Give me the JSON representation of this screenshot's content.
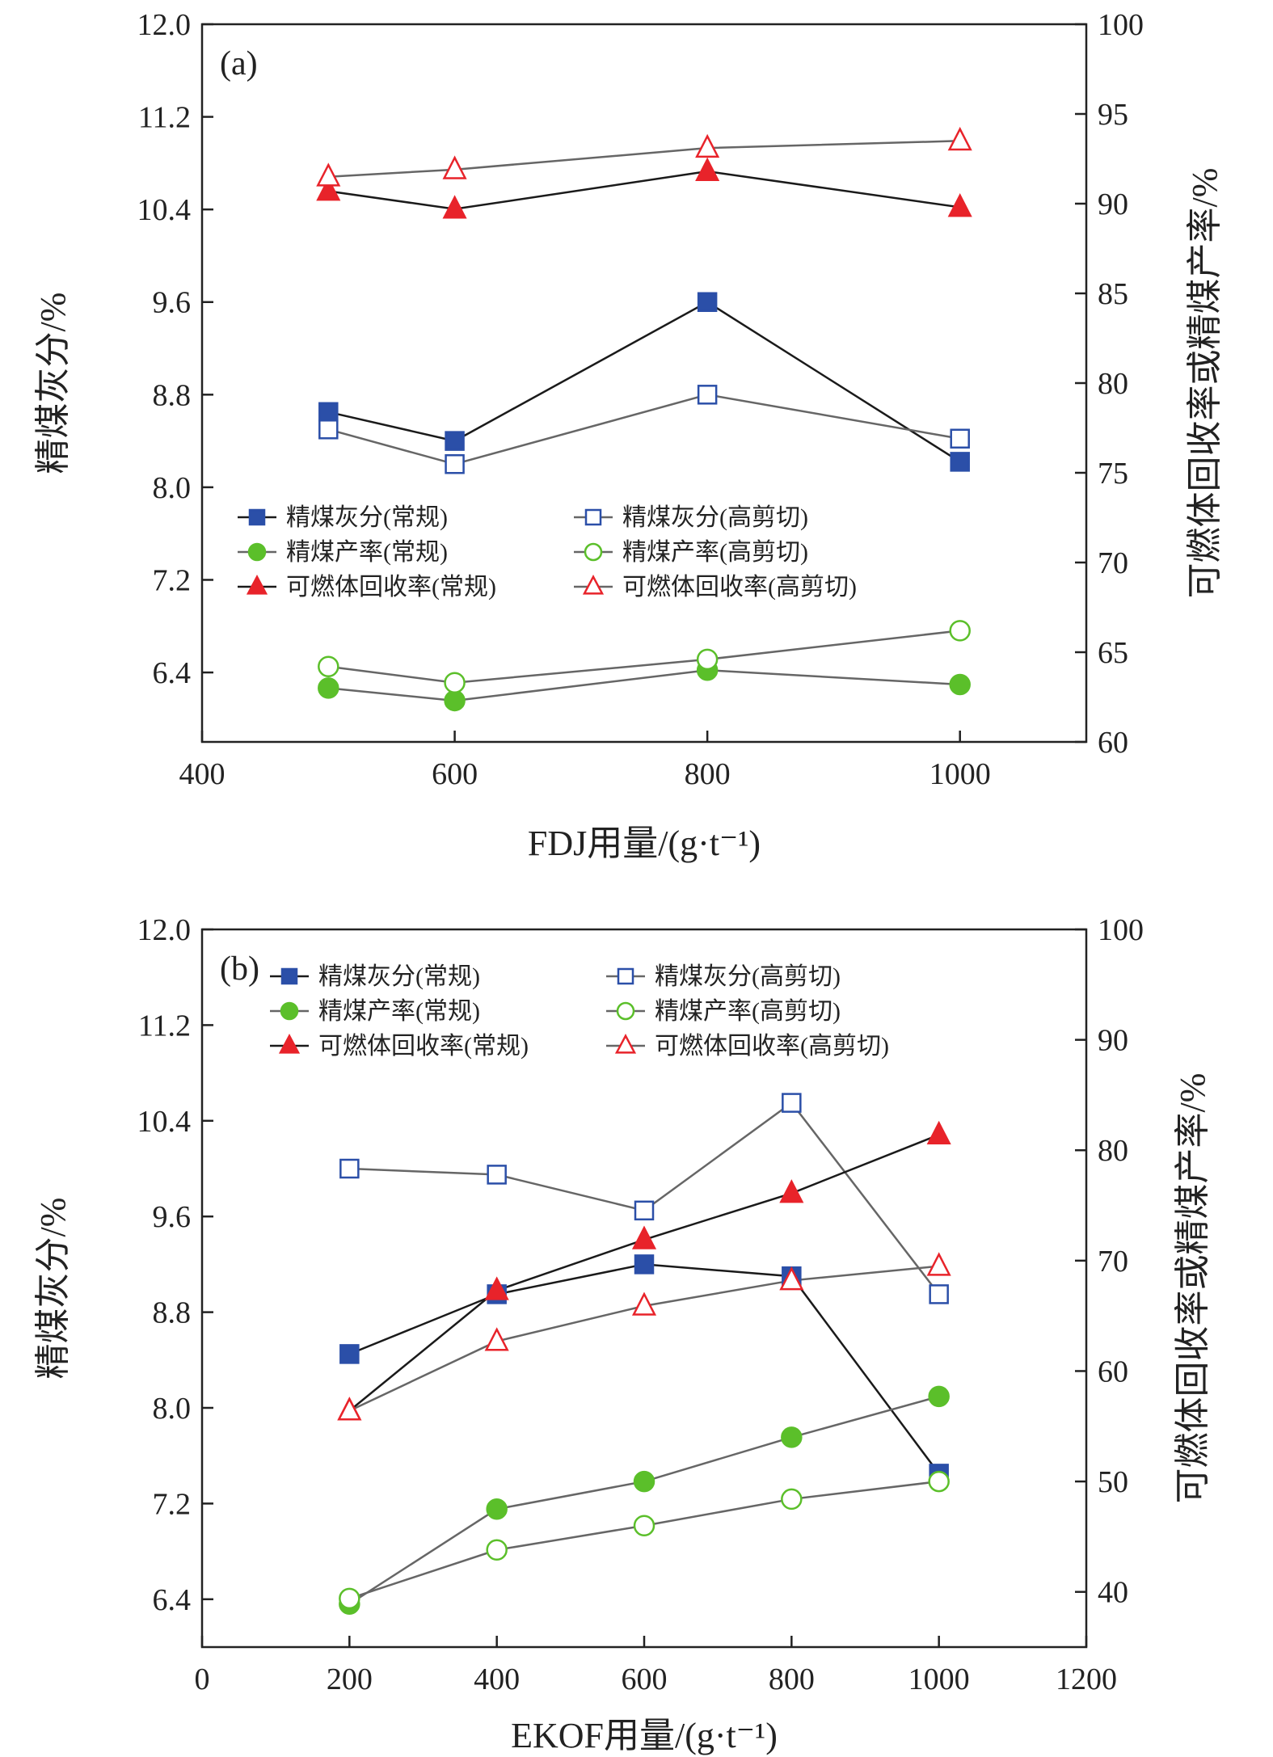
{
  "chart_data": [
    {
      "type": "line",
      "panel_label": "(a)",
      "xlabel": "FDJ用量/(g·t⁻¹)",
      "ylabel_left": "精煤灰分/%",
      "ylabel_right": "可燃体回收率或精煤产率/%",
      "xlim": [
        400,
        1100
      ],
      "xticks": [
        400,
        600,
        800,
        1000
      ],
      "ylim_left": [
        5.8,
        12.0
      ],
      "yticks_left": [
        "6.4",
        "7.2",
        "8.0",
        "8.8",
        "9.6",
        "10.4",
        "11.2",
        "12.0"
      ],
      "ylim_right": [
        60,
        100
      ],
      "yticks_right": [
        "60",
        "65",
        "70",
        "75",
        "80",
        "85",
        "90",
        "95",
        "100"
      ],
      "legend_position": "lower-middle",
      "x": [
        500,
        600,
        800,
        1000
      ],
      "series": [
        {
          "name": "精煤灰分(常规)",
          "axis": "left",
          "marker": "square",
          "filled": true,
          "color": "#2b4fa8",
          "line": "#1a1a1a",
          "values": [
            8.65,
            8.4,
            9.6,
            8.22
          ]
        },
        {
          "name": "精煤灰分(高剪切)",
          "axis": "left",
          "marker": "square",
          "filled": false,
          "color": "#2b4fa8",
          "line": "#666666",
          "values": [
            8.5,
            8.2,
            8.8,
            8.42
          ]
        },
        {
          "name": "精煤产率(常规)",
          "axis": "right",
          "marker": "circle",
          "filled": true,
          "color": "#5bbf2a",
          "line": "#666666",
          "values": [
            63.0,
            62.3,
            64.0,
            63.2
          ]
        },
        {
          "name": "精煤产率(高剪切)",
          "axis": "right",
          "marker": "circle",
          "filled": false,
          "color": "#5bbf2a",
          "line": "#666666",
          "values": [
            64.2,
            63.3,
            64.6,
            66.2
          ]
        },
        {
          "name": "可燃体回收率(常规)",
          "axis": "right",
          "marker": "triangle",
          "filled": true,
          "color": "#e8232a",
          "line": "#1a1a1a",
          "values": [
            90.7,
            89.7,
            91.8,
            89.8
          ]
        },
        {
          "name": "可燃体回收率(高剪切)",
          "axis": "right",
          "marker": "triangle",
          "filled": false,
          "color": "#e8232a",
          "line": "#666666",
          "values": [
            91.5,
            91.9,
            93.1,
            93.5
          ]
        }
      ]
    },
    {
      "type": "line",
      "panel_label": "(b)",
      "xlabel": "EKOF用量/(g·t⁻¹)",
      "ylabel_left": "精煤灰分/%",
      "ylabel_right": "可燃体回收率或精煤产率/%",
      "xlim": [
        0,
        1200
      ],
      "xticks": [
        0,
        200,
        400,
        600,
        800,
        1000,
        1200
      ],
      "ylim_left": [
        6.0,
        12.0
      ],
      "yticks_left": [
        "6.4",
        "7.2",
        "8.0",
        "8.8",
        "9.6",
        "10.4",
        "11.2",
        "12.0"
      ],
      "ylim_right": [
        35.0,
        100.0
      ],
      "yticks_right": [
        "40",
        "50",
        "60",
        "70",
        "80",
        "90",
        "100"
      ],
      "legend_position": "top",
      "x": [
        200,
        400,
        600,
        800,
        1000
      ],
      "series": [
        {
          "name": "精煤灰分(常规)",
          "axis": "left",
          "marker": "square",
          "filled": true,
          "color": "#2b4fa8",
          "line": "#1a1a1a",
          "values": [
            8.45,
            8.95,
            9.2,
            9.1,
            7.45
          ]
        },
        {
          "name": "精煤灰分(高剪切)",
          "axis": "left",
          "marker": "square",
          "filled": false,
          "color": "#2b4fa8",
          "line": "#666666",
          "values": [
            10.0,
            9.95,
            9.65,
            10.55,
            8.95
          ]
        },
        {
          "name": "精煤产率(常规)",
          "axis": "right",
          "marker": "circle",
          "filled": true,
          "color": "#5bbf2a",
          "line": "#666666",
          "values": [
            38.9,
            47.5,
            50.0,
            54.0,
            57.7
          ]
        },
        {
          "name": "精煤产率(高剪切)",
          "axis": "right",
          "marker": "circle",
          "filled": false,
          "color": "#5bbf2a",
          "line": "#666666",
          "values": [
            39.4,
            43.8,
            46.0,
            48.4,
            50.0
          ]
        },
        {
          "name": "可燃体回收率(常规)",
          "axis": "right",
          "marker": "triangle",
          "filled": true,
          "color": "#e8232a",
          "line": "#1a1a1a",
          "values": [
            56.4,
            67.3,
            71.9,
            76.1,
            81.4
          ]
        },
        {
          "name": "可燃体回收率(高剪切)",
          "axis": "right",
          "marker": "triangle",
          "filled": false,
          "color": "#e8232a",
          "line": "#666666",
          "values": [
            56.4,
            62.7,
            65.9,
            68.2,
            69.5
          ]
        }
      ]
    }
  ]
}
